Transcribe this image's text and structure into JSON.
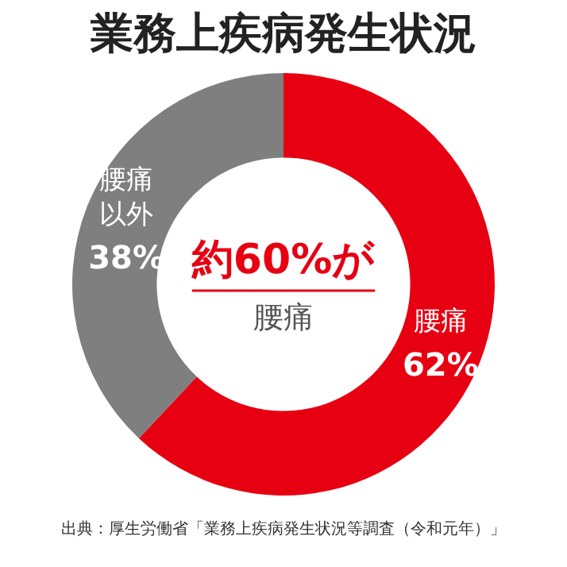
{
  "chart_data": {
    "type": "donut",
    "title": "業務上疾病発生状況",
    "categories": [
      "腰痛",
      "腰痛以外"
    ],
    "values": [
      62,
      38
    ],
    "value_labels": [
      "62%",
      "38%"
    ],
    "colors": [
      "#e60012",
      "#7f7f7f"
    ],
    "legend": false,
    "annotations": [
      "約60%が",
      "腰痛",
      "出典：厚生労働省「業務上疾病発生状況等調査（令和元年）」"
    ]
  }
}
